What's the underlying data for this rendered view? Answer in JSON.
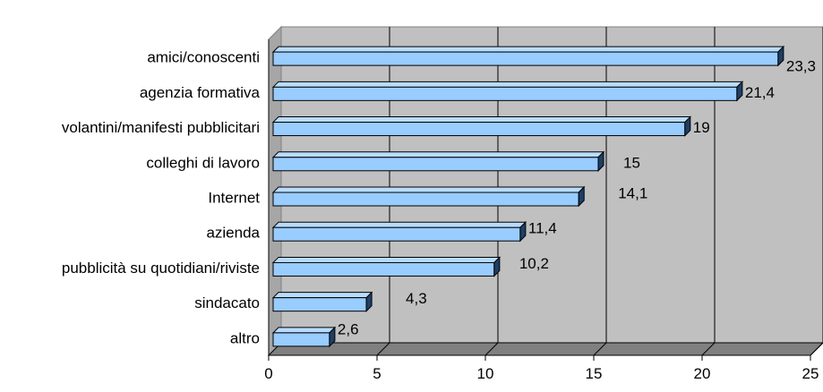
{
  "chart_data": {
    "type": "bar",
    "orientation": "horizontal",
    "style": "3d",
    "categories": [
      "amici/conoscenti",
      "agenzia formativa",
      "volantini/manifesti pubblicitari",
      "colleghi di lavoro",
      "Internet",
      "azienda",
      "pubblicità su quotidiani/riviste",
      "sindacato",
      "altro"
    ],
    "values": [
      23.3,
      21.4,
      19,
      15,
      14.1,
      11.4,
      10.2,
      4.3,
      2.6
    ],
    "data_labels": [
      "23,3",
      "21,4",
      "19",
      "15",
      "14,1",
      "11,4",
      "10,2",
      "4,3",
      "2,6"
    ],
    "xlim": [
      0,
      25
    ],
    "xticks": [
      "0",
      "5",
      "10",
      "15",
      "20",
      "25"
    ],
    "grid": true,
    "legend": "none",
    "colors": {
      "bar_front": "#99CCFF",
      "bar_top": "#B8DCFF",
      "bar_side": "#1F3F66",
      "plot_back": "#C0C0C0",
      "plot_floor": "#808080",
      "gridline": "#000000"
    }
  }
}
